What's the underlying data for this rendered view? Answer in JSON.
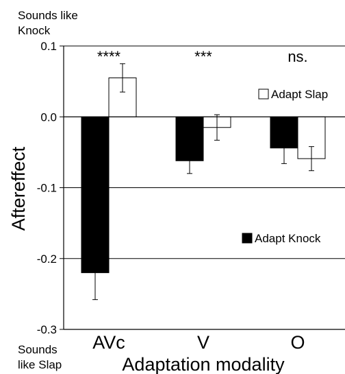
{
  "chart_data": {
    "type": "bar",
    "title": "",
    "xlabel": "Adaptation modality",
    "ylabel": "Aftereffect",
    "ylim": [
      -0.3,
      0.1
    ],
    "yticks": [
      0.1,
      0.0,
      -0.1,
      -0.2,
      -0.3
    ],
    "ytick_labels": [
      "0.1",
      "0.0",
      "-0.1",
      "-0.2",
      "-0.3"
    ],
    "grid": "horizontal",
    "categories": [
      "AVc",
      "V",
      "O"
    ],
    "series": [
      {
        "name": "Adapt Knock",
        "color": "#000000",
        "values": [
          -0.22,
          -0.062,
          -0.044
        ],
        "errors": [
          0.038,
          0.018,
          0.022
        ]
      },
      {
        "name": "Adapt Slap",
        "color": "#ffffff",
        "values": [
          0.055,
          -0.015,
          -0.059
        ],
        "errors": [
          0.02,
          0.018,
          0.017
        ]
      }
    ],
    "significance": [
      "****",
      "***",
      "ns."
    ],
    "top_note": "Sounds like\nKnock",
    "bottom_note": "Sounds\nlike Slap"
  }
}
